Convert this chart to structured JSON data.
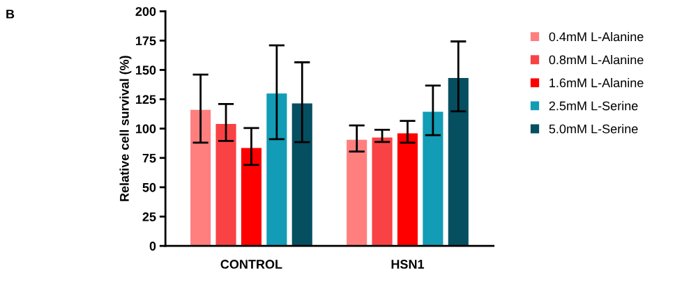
{
  "chart_data": {
    "type": "bar",
    "ylabel": "Relative cell survival (%)",
    "annotations": [
      "B"
    ],
    "categories": [
      "CONTROL",
      "HSN1"
    ],
    "series": [
      {
        "name": "0.4mM L-Alanine",
        "color": "#ff7f7f",
        "values": [
          116,
          90.4
        ],
        "errors": [
          [
            88,
            146
          ],
          [
            80.5,
            102.7
          ]
        ]
      },
      {
        "name": "0.8mM L-Alanine",
        "color": "#f94244",
        "values": [
          104,
          92.4
        ],
        "errors": [
          [
            89.5,
            121
          ],
          [
            88.6,
            99
          ]
        ]
      },
      {
        "name": "1.6mM L-Alanine",
        "color": "#ff0000",
        "values": [
          83.5,
          96
        ],
        "errors": [
          [
            69,
            100.5
          ],
          [
            88,
            106.6
          ]
        ]
      },
      {
        "name": "2.5mM L-Serine",
        "color": "#129cb5",
        "values": [
          130,
          114.4
        ],
        "errors": [
          [
            91,
            171
          ],
          [
            94.4,
            136.7
          ]
        ]
      },
      {
        "name": "5.0mM L-Serine",
        "color": "#054f61",
        "values": [
          121.5,
          143.2
        ],
        "errors": [
          [
            88.5,
            156.5
          ],
          [
            114.7,
            174.3
          ]
        ]
      }
    ],
    "ylim": [
      0,
      200
    ],
    "yticks": [
      0,
      25,
      50,
      75,
      100,
      125,
      150,
      175,
      200
    ],
    "grid": false,
    "legend": "right"
  }
}
